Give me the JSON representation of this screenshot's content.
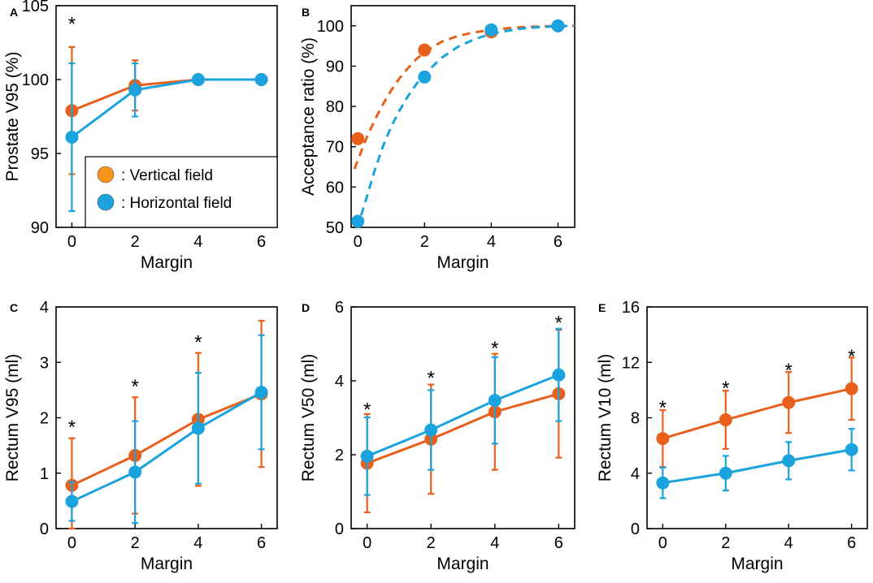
{
  "colors": {
    "vertical": "#E8601C",
    "horizontal": "#1BA3DE",
    "legend_vertical": "#F7941D"
  },
  "legend": {
    "vertical_label": ": Vertical field",
    "horizontal_label": ": Horizontal field"
  },
  "chart_data": [
    {
      "id": "A",
      "panel_label": "A",
      "type": "line",
      "xlabel": "Margin",
      "ylabel": "Prostate V95 (%)",
      "xlim": [
        -0.5,
        6.5
      ],
      "ylim": [
        90,
        105
      ],
      "xticks": [
        0,
        2,
        4,
        6
      ],
      "xtick_labels": [
        "0",
        "2",
        "4",
        "6"
      ],
      "yticks": [
        90,
        95,
        100,
        105
      ],
      "ytick_labels": [
        "90",
        "95",
        "100",
        "105"
      ],
      "significance": [
        {
          "x": 0,
          "y": 104.2,
          "label": "*"
        }
      ],
      "series": [
        {
          "key": "vertical",
          "name": "Vertical field",
          "x": [
            0,
            2,
            4,
            6
          ],
          "y": [
            97.9,
            99.6,
            100.0,
            100.0
          ],
          "err": [
            4.3,
            1.7,
            0.3,
            0.0
          ]
        },
        {
          "key": "horizontal",
          "name": "Horizontal field",
          "x": [
            0,
            2,
            4,
            6
          ],
          "y": [
            96.1,
            99.3,
            100.0,
            100.0
          ],
          "err": [
            5.0,
            1.8,
            0.3,
            0.0
          ]
        }
      ]
    },
    {
      "id": "B",
      "panel_label": "B",
      "type": "scatter",
      "xlabel": "Margin",
      "ylabel": "Acceptance ratio (%)",
      "xlim": [
        -0.2,
        6.5
      ],
      "ylim": [
        50,
        105
      ],
      "xticks": [
        0,
        2,
        4,
        6
      ],
      "xtick_labels": [
        "0",
        "2",
        "4",
        "6"
      ],
      "yticks": [
        50,
        60,
        70,
        80,
        90,
        100
      ],
      "ytick_labels": [
        "50",
        "60",
        "70",
        "80",
        "90",
        "100"
      ],
      "series": [
        {
          "key": "vertical",
          "name": "Vertical field",
          "x": [
            0,
            2,
            4,
            6
          ],
          "y": [
            72,
            94,
            98.5,
            100
          ],
          "fit": {
            "x": [
              -0.1,
              0.25,
              0.5,
              0.75,
              1,
              1.25,
              1.5,
              1.75,
              2,
              2.5,
              3,
              3.5,
              4,
              4.5,
              5,
              5.5,
              6,
              6.5
            ],
            "y": [
              64.5,
              72,
              76.5,
              80.5,
              84,
              87,
              89.5,
              91.7,
              93.5,
              96,
              97.5,
              98.4,
              99,
              99.4,
              99.7,
              99.85,
              100,
              100
            ]
          }
        },
        {
          "key": "horizontal",
          "name": "Horizontal field",
          "x": [
            0,
            2,
            4,
            6
          ],
          "y": [
            51.5,
            87.3,
            99,
            100
          ],
          "fit": {
            "x": [
              0.1,
              0.25,
              0.5,
              0.75,
              1,
              1.25,
              1.5,
              1.75,
              2,
              2.5,
              3,
              3.5,
              4,
              4.5,
              5,
              5.5,
              6,
              6.5
            ],
            "y": [
              53,
              57,
              64,
              70,
              75,
              79,
              82.5,
              85.5,
              88,
              92,
              94.8,
              96.7,
              98,
              98.8,
              99.4,
              99.7,
              99.9,
              100
            ]
          }
        }
      ]
    },
    {
      "id": "C",
      "panel_label": "C",
      "type": "line",
      "xlabel": "Margin",
      "ylabel": "Rectum V95 (ml)",
      "xlim": [
        -0.5,
        6.5
      ],
      "ylim": [
        0,
        4
      ],
      "xticks": [
        0,
        2,
        4,
        6
      ],
      "xtick_labels": [
        "0",
        "2",
        "4",
        "6"
      ],
      "yticks": [
        0,
        1,
        2,
        3,
        4
      ],
      "ytick_labels": [
        "0",
        "1",
        "2",
        "3",
        "4"
      ],
      "significance": [
        {
          "x": 0,
          "y": 1.95,
          "label": "*"
        },
        {
          "x": 2,
          "y": 2.68,
          "label": "*"
        },
        {
          "x": 4,
          "y": 3.48,
          "label": "*"
        }
      ],
      "series": [
        {
          "key": "vertical",
          "name": "Vertical field",
          "x": [
            0,
            2,
            4,
            6
          ],
          "y": [
            0.78,
            1.32,
            1.97,
            2.43
          ],
          "err": [
            0.85,
            1.05,
            1.2,
            1.32
          ]
        },
        {
          "key": "horizontal",
          "name": "Horizontal field",
          "x": [
            0,
            2,
            4,
            6
          ],
          "y": [
            0.49,
            1.02,
            1.81,
            2.46
          ],
          "err": [
            0.35,
            0.92,
            1.0,
            1.03
          ]
        }
      ]
    },
    {
      "id": "D",
      "panel_label": "D",
      "type": "line",
      "xlabel": "Margin",
      "ylabel": "Rectum V50 (ml)",
      "xlim": [
        -0.5,
        6.5
      ],
      "ylim": [
        0,
        6
      ],
      "xticks": [
        0,
        2,
        4,
        6
      ],
      "xtick_labels": [
        "0",
        "2",
        "4",
        "6"
      ],
      "yticks": [
        0,
        2,
        4,
        6
      ],
      "ytick_labels": [
        "0",
        "2",
        "4",
        "6"
      ],
      "significance": [
        {
          "x": 0,
          "y": 3.4,
          "label": "*"
        },
        {
          "x": 2,
          "y": 4.25,
          "label": "*"
        },
        {
          "x": 4,
          "y": 5.05,
          "label": "*"
        },
        {
          "x": 6,
          "y": 5.75,
          "label": "*"
        }
      ],
      "series": [
        {
          "key": "vertical",
          "name": "Vertical field",
          "x": [
            0,
            2,
            4,
            6
          ],
          "y": [
            1.77,
            2.42,
            3.16,
            3.65
          ],
          "err": [
            1.33,
            1.48,
            1.57,
            1.73
          ]
        },
        {
          "key": "horizontal",
          "name": "Horizontal field",
          "x": [
            0,
            2,
            4,
            6
          ],
          "y": [
            1.96,
            2.67,
            3.47,
            4.16
          ],
          "err": [
            1.05,
            1.08,
            1.17,
            1.25
          ]
        }
      ]
    },
    {
      "id": "E",
      "panel_label": "E",
      "type": "line",
      "xlabel": "Margin",
      "ylabel": "Rectum V10 (ml)",
      "xlim": [
        -0.5,
        6.5
      ],
      "ylim": [
        0,
        16
      ],
      "xticks": [
        0,
        2,
        4,
        6
      ],
      "xtick_labels": [
        "0",
        "2",
        "4",
        "6"
      ],
      "yticks": [
        0,
        4,
        8,
        12,
        16
      ],
      "ytick_labels": [
        "0",
        "4",
        "8",
        "12",
        "16"
      ],
      "significance": [
        {
          "x": 0,
          "y": 9.2,
          "label": "*"
        },
        {
          "x": 2,
          "y": 10.6,
          "label": "*"
        },
        {
          "x": 4,
          "y": 11.9,
          "label": "*"
        },
        {
          "x": 6,
          "y": 12.9,
          "label": "*"
        }
      ],
      "series": [
        {
          "key": "vertical",
          "name": "Vertical field",
          "x": [
            0,
            2,
            4,
            6
          ],
          "y": [
            6.5,
            7.85,
            9.1,
            10.1
          ],
          "err": [
            2.05,
            2.1,
            2.2,
            2.25
          ]
        },
        {
          "key": "horizontal",
          "name": "Horizontal field",
          "x": [
            0,
            2,
            4,
            6
          ],
          "y": [
            3.3,
            4.0,
            4.9,
            5.7
          ],
          "err": [
            1.1,
            1.25,
            1.35,
            1.5
          ]
        }
      ]
    }
  ]
}
